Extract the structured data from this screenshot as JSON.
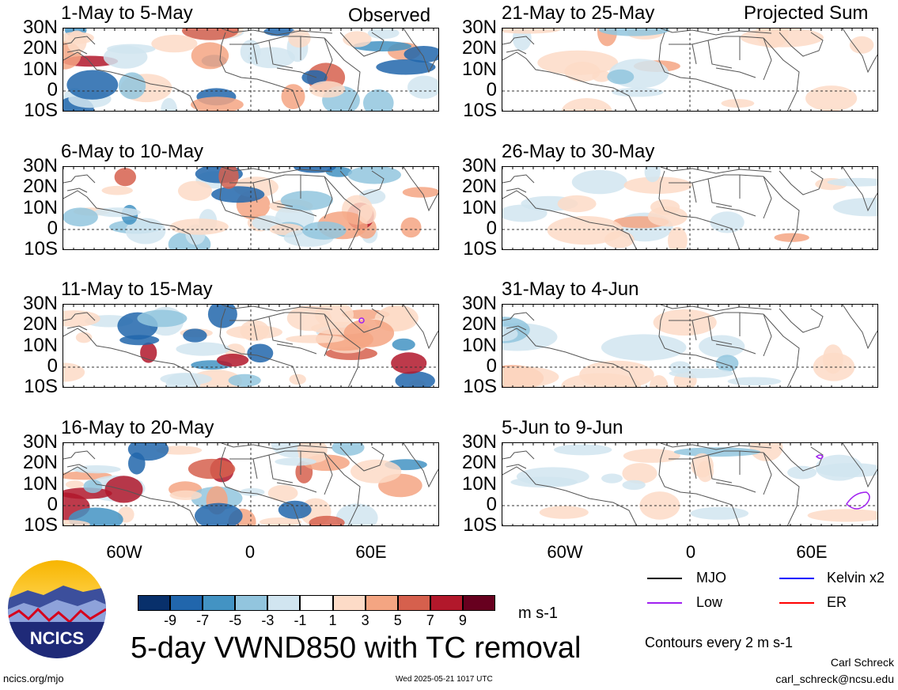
{
  "header": {
    "observed_label": "Observed",
    "projected_label": "Projected Sum"
  },
  "chart_data": {
    "type": "heatmap",
    "variable_title": "5-day VWND850 with TC removal",
    "units": "m s-1",
    "colorbar": {
      "ticks": [
        "-9",
        "-7",
        "-5",
        "-3",
        "-1",
        "1",
        "3",
        "5",
        "7",
        "9"
      ],
      "colors": [
        "#08306b",
        "#2166ac",
        "#4393c3",
        "#92c5de",
        "#d1e5f0",
        "#ffffff",
        "#fddbc7",
        "#f4a582",
        "#d6604d",
        "#b2182b",
        "#67001f"
      ]
    },
    "lat_ticks": [
      "30N",
      "20N",
      "10N",
      "0",
      "10S"
    ],
    "lon_ticks": [
      "60W",
      "0",
      "60E"
    ],
    "panels": [
      {
        "title": "1-May to 5-May",
        "group": "Observed"
      },
      {
        "title": "6-May to 10-May",
        "group": "Observed"
      },
      {
        "title": "11-May to 15-May",
        "group": "Observed"
      },
      {
        "title": "16-May to 20-May",
        "group": "Observed"
      },
      {
        "title": "21-May to 25-May",
        "group": "Projected Sum"
      },
      {
        "title": "26-May to 30-May",
        "group": "Projected Sum"
      },
      {
        "title": "31-May to 4-Jun",
        "group": "Projected Sum"
      },
      {
        "title": "5-Jun to 9-Jun",
        "group": "Projected Sum"
      }
    ],
    "legend": [
      {
        "label": "MJO",
        "color": "#000000"
      },
      {
        "label": "Kelvin x2",
        "color": "#0000ff"
      },
      {
        "label": "Low",
        "color": "#a020f0"
      },
      {
        "label": "ER",
        "color": "#ff0000"
      }
    ],
    "contour_note": "Contours every 2 m s-1"
  },
  "footer": {
    "site": "ncics.org/mjo",
    "timestamp": "Wed 2025-05-21 1017 UTC",
    "author": "Carl Schreck",
    "email": "carl_schreck@ncsu.edu",
    "logo_text": "NCICS"
  }
}
